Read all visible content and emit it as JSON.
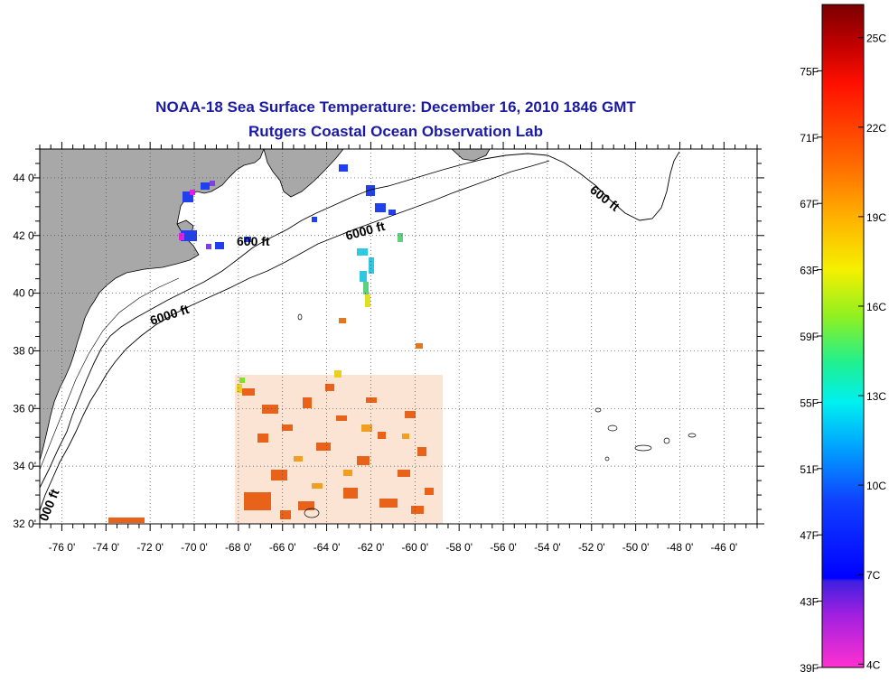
{
  "title": "NOAA-18 Sea Surface Temperature:  December 16, 2010 1846 GMT",
  "subtitle": "Rutgers Coastal Ocean Observation Lab",
  "map": {
    "lon_range": [
      -77,
      -44.5
    ],
    "lat_range": [
      32,
      45
    ],
    "lon_ticks": [
      {
        "value": -76,
        "label": "-76 0'"
      },
      {
        "value": -74,
        "label": "-74 0'"
      },
      {
        "value": -72,
        "label": "-72 0'"
      },
      {
        "value": -70,
        "label": "-70 0'"
      },
      {
        "value": -68,
        "label": "-68 0'"
      },
      {
        "value": -66,
        "label": "-66 0'"
      },
      {
        "value": -64,
        "label": "-64 0'"
      },
      {
        "value": -62,
        "label": "-62 0'"
      },
      {
        "value": -60,
        "label": "-60 0'"
      },
      {
        "value": -58,
        "label": "-58 0'"
      },
      {
        "value": -56,
        "label": "-56 0'"
      },
      {
        "value": -54,
        "label": "-54 0'"
      },
      {
        "value": -52,
        "label": "-52 0'"
      },
      {
        "value": -50,
        "label": "-50 0'"
      },
      {
        "value": -48,
        "label": "-48 0'"
      },
      {
        "value": -46,
        "label": "-46 0'"
      }
    ],
    "lat_ticks": [
      {
        "value": 44,
        "label": "44 0'"
      },
      {
        "value": 42,
        "label": "42 0'"
      },
      {
        "value": 40,
        "label": "40 0'"
      },
      {
        "value": 38,
        "label": "38 0'"
      },
      {
        "value": 36,
        "label": "36 0'"
      },
      {
        "value": 34,
        "label": "34 0'"
      },
      {
        "value": 32,
        "label": "32 0'"
      }
    ],
    "contour_labels": [
      {
        "text": "600 ft"
      },
      {
        "text": "6000 ft"
      },
      {
        "text": "6000 ft"
      },
      {
        "text": "600 ft"
      },
      {
        "text": "000 ft"
      }
    ],
    "land_color": "#a8a8a8",
    "grid": "dotted"
  },
  "color_scale": {
    "fahrenheit_labels": [
      "75F",
      "71F",
      "67F",
      "63F",
      "59F",
      "55F",
      "51F",
      "47F",
      "43F",
      "39F"
    ],
    "celsius_labels": [
      "25C",
      "22C",
      "19C",
      "16C",
      "13C",
      "10C",
      "7C",
      "4C"
    ]
  }
}
